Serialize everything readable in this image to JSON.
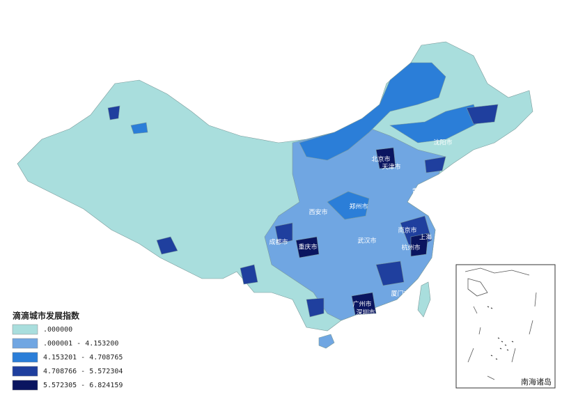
{
  "legend": {
    "title": "滴滴城市发展指数",
    "items": [
      {
        "label": ".000000",
        "color": "#a9dedd"
      },
      {
        "label": ".000001 - 4.153200",
        "color": "#70a6e2"
      },
      {
        "label": "4.153201 - 4.708765",
        "color": "#2b7ed8"
      },
      {
        "label": "4.708766 - 5.572304",
        "color": "#1f3f9e"
      },
      {
        "label": "5.572305 - 6.824159",
        "color": "#0a1560"
      }
    ]
  },
  "city_labels": [
    "北京市",
    "天津市",
    "沈阳市",
    "青岛市",
    "郑州市",
    "西安市",
    "南京市",
    "上海",
    "杭州市",
    "武汉市",
    "成都市",
    "重庆市",
    "厦门市",
    "广州市",
    "深圳市"
  ],
  "inset": {
    "label": "南海诸岛"
  }
}
